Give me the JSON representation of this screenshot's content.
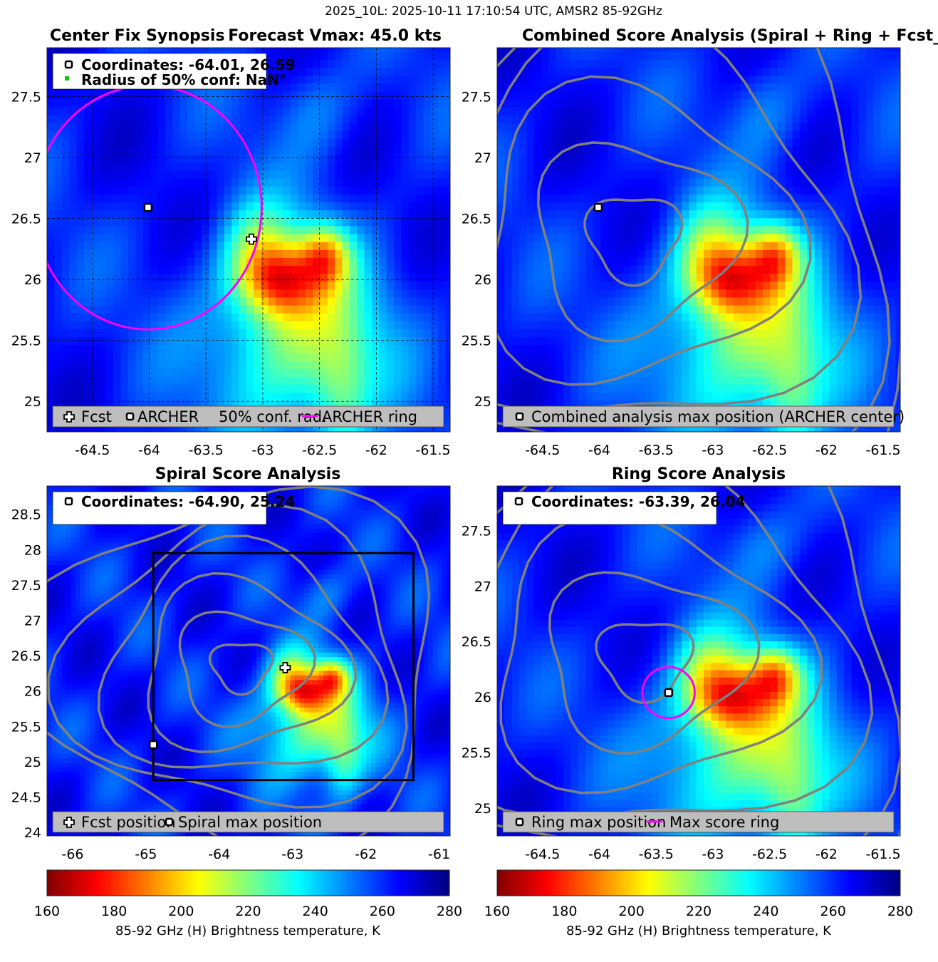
{
  "figure": {
    "suptitle": "2025_10L: 2025-10-11 17:10:54 UTC, AMSR2 85-92GHz"
  },
  "colors": {
    "ring": "#ff00ff",
    "contour": "#808080",
    "legend_bg": "#bebebe",
    "conf_marker": "#00cc00"
  },
  "chart_data": [
    {
      "type": "heatmap",
      "id": "center_fix",
      "title": "Center Fix Synopsis",
      "title_right": "Forecast Vmax: 45.0 kts",
      "xlim": [
        -64.9,
        -61.35
      ],
      "ylim": [
        24.75,
        27.9
      ],
      "xticks": [
        -64.5,
        -64,
        -63.5,
        -63,
        -62.5,
        -62,
        -61.5
      ],
      "yticks": [
        25,
        25.5,
        26,
        26.5,
        27,
        27.5
      ],
      "grid": true,
      "info_lines": [
        "Coordinates: -64.01, 26.59",
        "Radius of 50% conf: NaN°"
      ],
      "legend_items": [
        "Fcst",
        "ARCHER",
        "50% conf. rad.",
        "ARCHER ring"
      ],
      "legend_position": "bottom",
      "markers": {
        "archer_center": [
          -64.01,
          26.59
        ],
        "forecast": [
          -63.1,
          26.33
        ]
      },
      "ring": {
        "center": [
          -64.01,
          26.59
        ],
        "radius_deg": 1.0
      },
      "colorbar": {
        "range": [
          160,
          280
        ]
      }
    },
    {
      "type": "heatmap",
      "id": "combined",
      "title": "Combined Score Analysis (Spiral + Ring + Fcst_Pe",
      "xlim": [
        -64.9,
        -61.35
      ],
      "ylim": [
        24.75,
        27.9
      ],
      "xticks": [
        -64.5,
        -64,
        -63.5,
        -63,
        -62.5,
        -62,
        -61.5
      ],
      "yticks": [
        25,
        25.5,
        26,
        26.5,
        27,
        27.5
      ],
      "legend_items": [
        "Combined analysis max position (ARCHER center)"
      ],
      "legend_position": "bottom",
      "markers": {
        "max_position": [
          -64.01,
          26.59
        ]
      },
      "contours": true
    },
    {
      "type": "heatmap",
      "id": "spiral",
      "title": "Spiral Score Analysis",
      "xlim": [
        -66.35,
        -60.85
      ],
      "ylim": [
        23.95,
        28.9
      ],
      "xticks": [
        -66,
        -65,
        -64,
        -63,
        -62,
        -61
      ],
      "yticks": [
        24,
        24.5,
        25,
        25.5,
        26,
        26.5,
        27,
        27.5,
        28,
        28.5
      ],
      "info_lines": [
        "Coordinates: -64.90, 25.24"
      ],
      "legend_items": [
        "Fcst position",
        "Spiral max position"
      ],
      "legend_position": "bottom",
      "markers": {
        "spiral_max": [
          -64.9,
          25.24
        ],
        "forecast": [
          -63.1,
          26.33
        ]
      },
      "search_box": {
        "x": [
          -64.9,
          -61.35
        ],
        "y": [
          24.74,
          27.95
        ]
      },
      "contours": true
    },
    {
      "type": "heatmap",
      "id": "ring",
      "title": "Ring Score Analysis",
      "xlim": [
        -64.9,
        -61.35
      ],
      "ylim": [
        24.75,
        27.9
      ],
      "xticks": [
        -64.5,
        -64,
        -63.5,
        -63,
        -62.5,
        -62,
        -61.5
      ],
      "yticks": [
        25,
        25.5,
        26,
        26.5,
        27,
        27.5
      ],
      "info_lines": [
        "Coordinates: -63.39, 26.04"
      ],
      "legend_items": [
        "Ring max position",
        "Max score ring"
      ],
      "legend_position": "bottom",
      "markers": {
        "ring_max": [
          -63.39,
          26.04
        ]
      },
      "ring": {
        "center": [
          -63.39,
          26.04
        ],
        "radius_deg": 0.23
      },
      "contours": true
    }
  ],
  "colorbars": [
    {
      "ticks": [
        160,
        180,
        200,
        220,
        240,
        260,
        280
      ],
      "label": "85-92 GHz (H) Brightness temperature, K"
    },
    {
      "ticks": [
        160,
        180,
        200,
        220,
        240,
        260,
        280
      ],
      "label": "85-92 GHz (H) Brightness temperature, K"
    }
  ]
}
